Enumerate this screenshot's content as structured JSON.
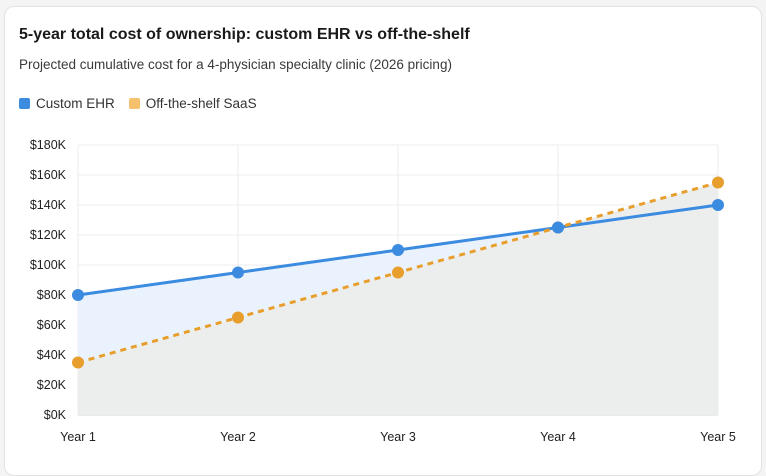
{
  "chart_data": {
    "type": "line",
    "title": "5-year total cost of ownership: custom EHR vs off-the-shelf",
    "subtitle": "Projected cumulative cost for a 4-physician specialty clinic (2026 pricing)",
    "categories": [
      "Year 1",
      "Year 2",
      "Year 3",
      "Year 4",
      "Year 5"
    ],
    "series": [
      {
        "name": "Custom EHR",
        "values": [
          80000,
          95000,
          110000,
          125000,
          140000
        ],
        "color": "#3b8be0",
        "style": "solid"
      },
      {
        "name": "Off-the-shelf SaaS",
        "values": [
          35000,
          65000,
          95000,
          125000,
          155000
        ],
        "color": "#e89e2c",
        "style": "dashed"
      }
    ],
    "legend_swatch_colors": [
      "#3b8be0",
      "#f5c16c"
    ],
    "ylim": [
      0,
      180000
    ],
    "yticks": [
      "$0K",
      "$20K",
      "$40K",
      "$60K",
      "$80K",
      "$100K",
      "$120K",
      "$140K",
      "$160K",
      "$180K"
    ],
    "xlabel": "",
    "ylabel": "",
    "grid": true,
    "legend": "top-left"
  }
}
